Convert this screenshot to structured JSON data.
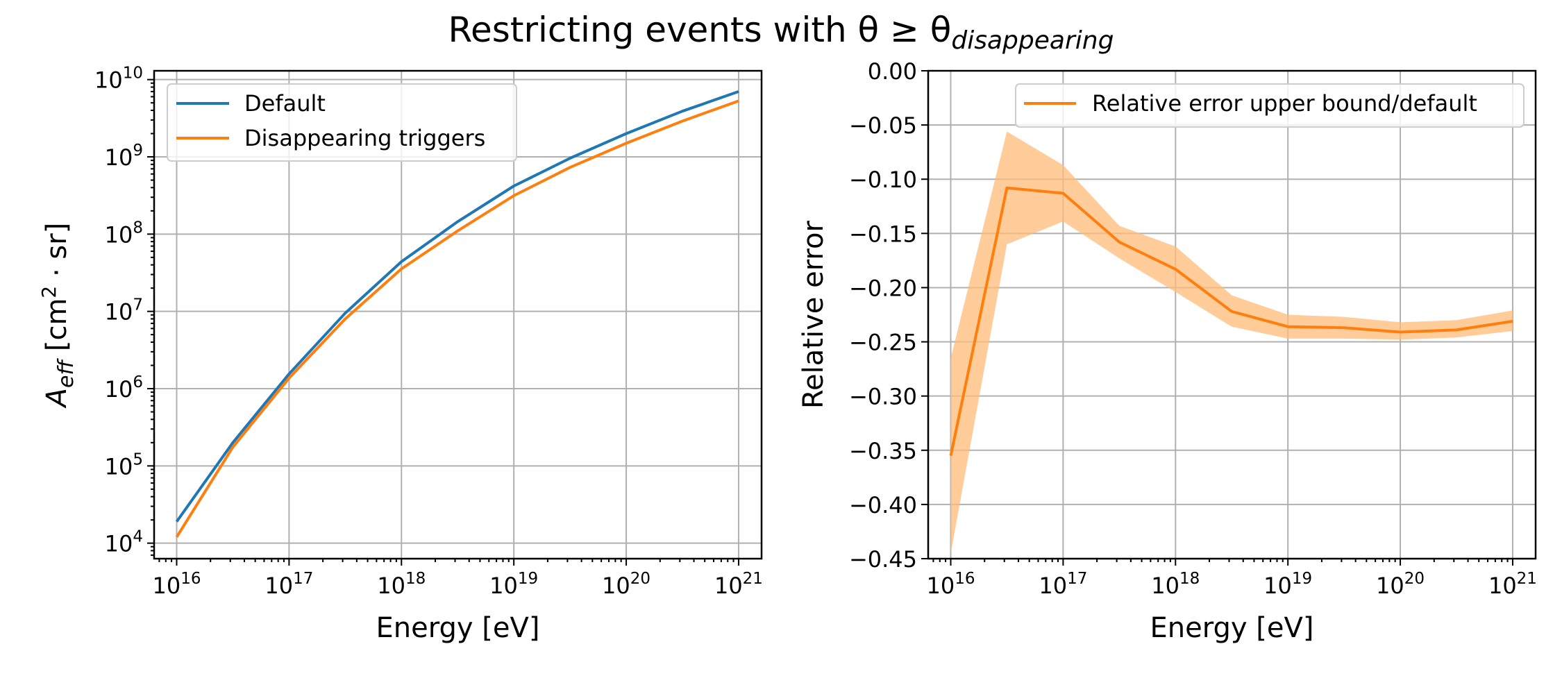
{
  "figure": {
    "title": "Restricting events with θ ≥ θ",
    "title_subscript": "disappearing"
  },
  "chart_data": [
    {
      "type": "line",
      "x_scale": "log",
      "y_scale": "log",
      "xlabel": "Energy [eV]",
      "ylabel": "A_eff [cm^2 · sr]",
      "xlim": [
        6300000000000000.0,
        1.6e+21
      ],
      "ylim": [
        6300.0,
        13000000000.0
      ],
      "grid": true,
      "legend_position": "top-left",
      "x_ticks": [
        {
          "value": 1e+16,
          "base": "10",
          "exp": "16"
        },
        {
          "value": 1e+17,
          "base": "10",
          "exp": "17"
        },
        {
          "value": 1e+18,
          "base": "10",
          "exp": "18"
        },
        {
          "value": 1e+19,
          "base": "10",
          "exp": "19"
        },
        {
          "value": 1e+20,
          "base": "10",
          "exp": "20"
        },
        {
          "value": 1e+21,
          "base": "10",
          "exp": "21"
        }
      ],
      "y_ticks": [
        {
          "value": 10000.0,
          "base": "10",
          "exp": "4"
        },
        {
          "value": 100000.0,
          "base": "10",
          "exp": "5"
        },
        {
          "value": 1000000.0,
          "base": "10",
          "exp": "6"
        },
        {
          "value": 10000000.0,
          "base": "10",
          "exp": "7"
        },
        {
          "value": 100000000.0,
          "base": "10",
          "exp": "8"
        },
        {
          "value": 1000000000.0,
          "base": "10",
          "exp": "9"
        },
        {
          "value": 10000000000.0,
          "base": "10",
          "exp": "10"
        }
      ],
      "x": [
        1e+16,
        3.16e+16,
        1e+17,
        3.16e+17,
        1e+18,
        3.16e+18,
        1e+19,
        3.16e+19,
        1e+20,
        3.16e+20,
        1e+21
      ],
      "series": [
        {
          "name": "Default",
          "color": "#1f77b4",
          "values": [
            19000.0,
            200000.0,
            1550000.0,
            9500000.0,
            44000000.0,
            145000000.0,
            420000000.0,
            960000000.0,
            2000000000.0,
            3900000000.0,
            7000000000.0
          ]
        },
        {
          "name": "Disappearing triggers",
          "color": "#ff7f0e",
          "values": [
            12000.0,
            175000.0,
            1370000.0,
            8000000.0,
            35500000.0,
            110000000.0,
            315000000.0,
            730000000.0,
            1500000000.0,
            2900000000.0,
            5300000000.0
          ]
        }
      ]
    },
    {
      "type": "line",
      "x_scale": "log",
      "y_scale": "linear",
      "xlabel": "Energy [eV]",
      "ylabel": "Relative error",
      "xlim": [
        6300000000000000.0,
        1.6e+21
      ],
      "ylim": [
        -0.45,
        0.0
      ],
      "grid": true,
      "legend_position": "top-right",
      "x_ticks": [
        {
          "value": 1e+16,
          "base": "10",
          "exp": "16"
        },
        {
          "value": 1e+17,
          "base": "10",
          "exp": "17"
        },
        {
          "value": 1e+18,
          "base": "10",
          "exp": "18"
        },
        {
          "value": 1e+19,
          "base": "10",
          "exp": "19"
        },
        {
          "value": 1e+20,
          "base": "10",
          "exp": "20"
        },
        {
          "value": 1e+21,
          "base": "10",
          "exp": "21"
        }
      ],
      "y_ticks": [
        {
          "value": 0.0,
          "label": "0.00"
        },
        {
          "value": -0.05,
          "label": "−0.05"
        },
        {
          "value": -0.1,
          "label": "−0.10"
        },
        {
          "value": -0.15,
          "label": "−0.15"
        },
        {
          "value": -0.2,
          "label": "−0.20"
        },
        {
          "value": -0.25,
          "label": "−0.25"
        },
        {
          "value": -0.3,
          "label": "−0.30"
        },
        {
          "value": -0.35,
          "label": "−0.35"
        },
        {
          "value": -0.4,
          "label": "−0.40"
        },
        {
          "value": -0.45,
          "label": "−0.45"
        }
      ],
      "x": [
        1e+16,
        3.16e+16,
        1e+17,
        3.16e+17,
        1e+18,
        3.16e+18,
        1e+19,
        3.16e+19,
        1e+20,
        3.16e+20,
        1e+21
      ],
      "series": [
        {
          "name": "Relative error upper bound/default",
          "color": "#ff7f0e",
          "values": [
            -0.355,
            -0.108,
            -0.113,
            -0.158,
            -0.183,
            -0.222,
            -0.236,
            -0.237,
            -0.241,
            -0.239,
            -0.231
          ],
          "band_upper": [
            -0.265,
            -0.056,
            -0.087,
            -0.143,
            -0.162,
            -0.207,
            -0.225,
            -0.227,
            -0.232,
            -0.23,
            -0.221
          ],
          "band_lower": [
            -0.445,
            -0.16,
            -0.139,
            -0.173,
            -0.204,
            -0.236,
            -0.247,
            -0.247,
            -0.248,
            -0.246,
            -0.24
          ],
          "band_color": "#ffbb78"
        }
      ]
    }
  ]
}
